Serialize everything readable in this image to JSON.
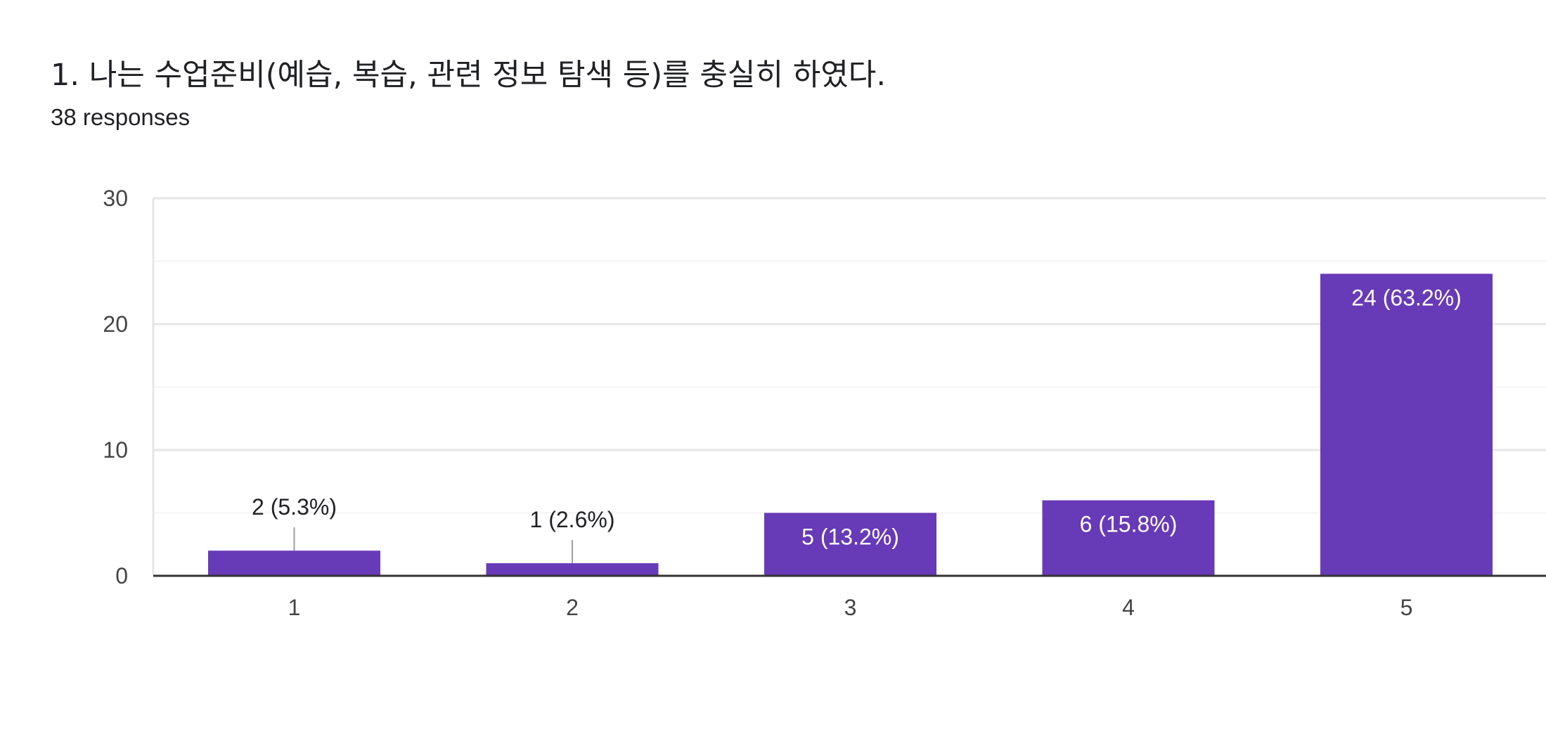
{
  "header": {
    "title": "1. 나는 수업준비(예습, 복습, 관련 정보 탐색 등)를 충실히 하였다.",
    "responses": "38 responses"
  },
  "colors": {
    "bar": "#673ab7",
    "grid_major": "#e6e6e6",
    "grid_minor": "#f3f3f3",
    "axis": "#333333",
    "label_outside": "#202124",
    "label_inside": "#ffffff",
    "leader": "#9e9e9e"
  },
  "chart_data": {
    "type": "bar",
    "title": "1. 나는 수업준비(예습, 복습, 관련 정보 탐색 등)를 충실히 하였다.",
    "xlabel": "",
    "ylabel": "",
    "categories": [
      "1",
      "2",
      "3",
      "4",
      "5"
    ],
    "values": [
      2,
      1,
      5,
      6,
      24
    ],
    "data_labels": [
      "2 (5.3%)",
      "1 (2.6%)",
      "5 (13.2%)",
      "6 (15.8%)",
      "24 (63.2%)"
    ],
    "ylim": [
      0,
      30
    ],
    "yticks": [
      "0",
      "10",
      "20",
      "30"
    ],
    "grid": true,
    "legend": "none"
  }
}
